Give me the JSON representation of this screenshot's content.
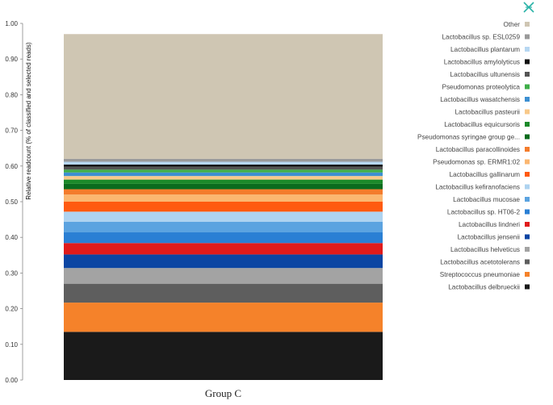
{
  "chart_data": {
    "type": "bar",
    "stacked": true,
    "categories": [
      "Group C"
    ],
    "ylabel": "Relative readcount (% of classified and selected reads)",
    "xlabel": "",
    "ylim": [
      0,
      1
    ],
    "yticks": [
      "0.00",
      "0.10",
      "0.20",
      "0.30",
      "0.40",
      "0.50",
      "0.60",
      "0.70",
      "0.80",
      "0.90",
      "1.00"
    ],
    "grid": false,
    "legend_position": "right",
    "series": [
      {
        "name": "Lactobacillus delbrueckii",
        "color": "#1a1a1a",
        "values": [
          0.135
        ]
      },
      {
        "name": "Streptococcus pneumoniae",
        "color": "#f5822a",
        "values": [
          0.082
        ]
      },
      {
        "name": "Lactobacillus acetotolerans",
        "color": "#5e5e5e",
        "values": [
          0.053
        ]
      },
      {
        "name": "Lactobacillus helveticus",
        "color": "#a3a3a3",
        "values": [
          0.044
        ]
      },
      {
        "name": "Lactobacillus jensenii",
        "color": "#0b45a3",
        "values": [
          0.038
        ]
      },
      {
        "name": "Lactobacillus lindneri",
        "color": "#e01b1b",
        "values": [
          0.032
        ]
      },
      {
        "name": "Lactobacillus sp. HT06-2",
        "color": "#2a7fd4",
        "values": [
          0.03
        ]
      },
      {
        "name": "Lactobacillus mucosae",
        "color": "#5ba3e0",
        "values": [
          0.03
        ]
      },
      {
        "name": "Lactobacillus kefiranofaciens",
        "color": "#aed3f0",
        "values": [
          0.028
        ]
      },
      {
        "name": "Lactobacillus gallinarum",
        "color": "#ff5a10",
        "values": [
          0.028
        ]
      },
      {
        "name": "Pseudomonas sp. ERMR1:02",
        "color": "#fbb771",
        "values": [
          0.02
        ]
      },
      {
        "name": "Lactobacillus paracollinoides",
        "color": "#f47c2c",
        "values": [
          0.015
        ]
      },
      {
        "name": "Pseudomonas syringae group ge...",
        "color": "#0a6b1e",
        "values": [
          0.015
        ]
      },
      {
        "name": "Lactobacillus equicursoris",
        "color": "#1b8a2a",
        "values": [
          0.012
        ]
      },
      {
        "name": "Lactobacillus pasteurii",
        "color": "#f8c98a",
        "values": [
          0.01
        ]
      },
      {
        "name": "Lactobacillus wasatchensis",
        "color": "#3d8fd1",
        "values": [
          0.01
        ]
      },
      {
        "name": "Pseudomonas proteolytica",
        "color": "#3fae49",
        "values": [
          0.008
        ]
      },
      {
        "name": "Lactobacillus ultunensis",
        "color": "#555555",
        "values": [
          0.008
        ]
      },
      {
        "name": "Lactobacillus amylolyticus",
        "color": "#111111",
        "values": [
          0.006
        ]
      },
      {
        "name": "Lactobacillus plantarum",
        "color": "#b7d7f2",
        "values": [
          0.008
        ]
      },
      {
        "name": "Lactobacillus sp. ESL0259",
        "color": "#9a9a9a",
        "values": [
          0.008
        ]
      },
      {
        "name": "Other",
        "color": "#cfc6b3",
        "values": [
          0.35
        ]
      }
    ]
  }
}
